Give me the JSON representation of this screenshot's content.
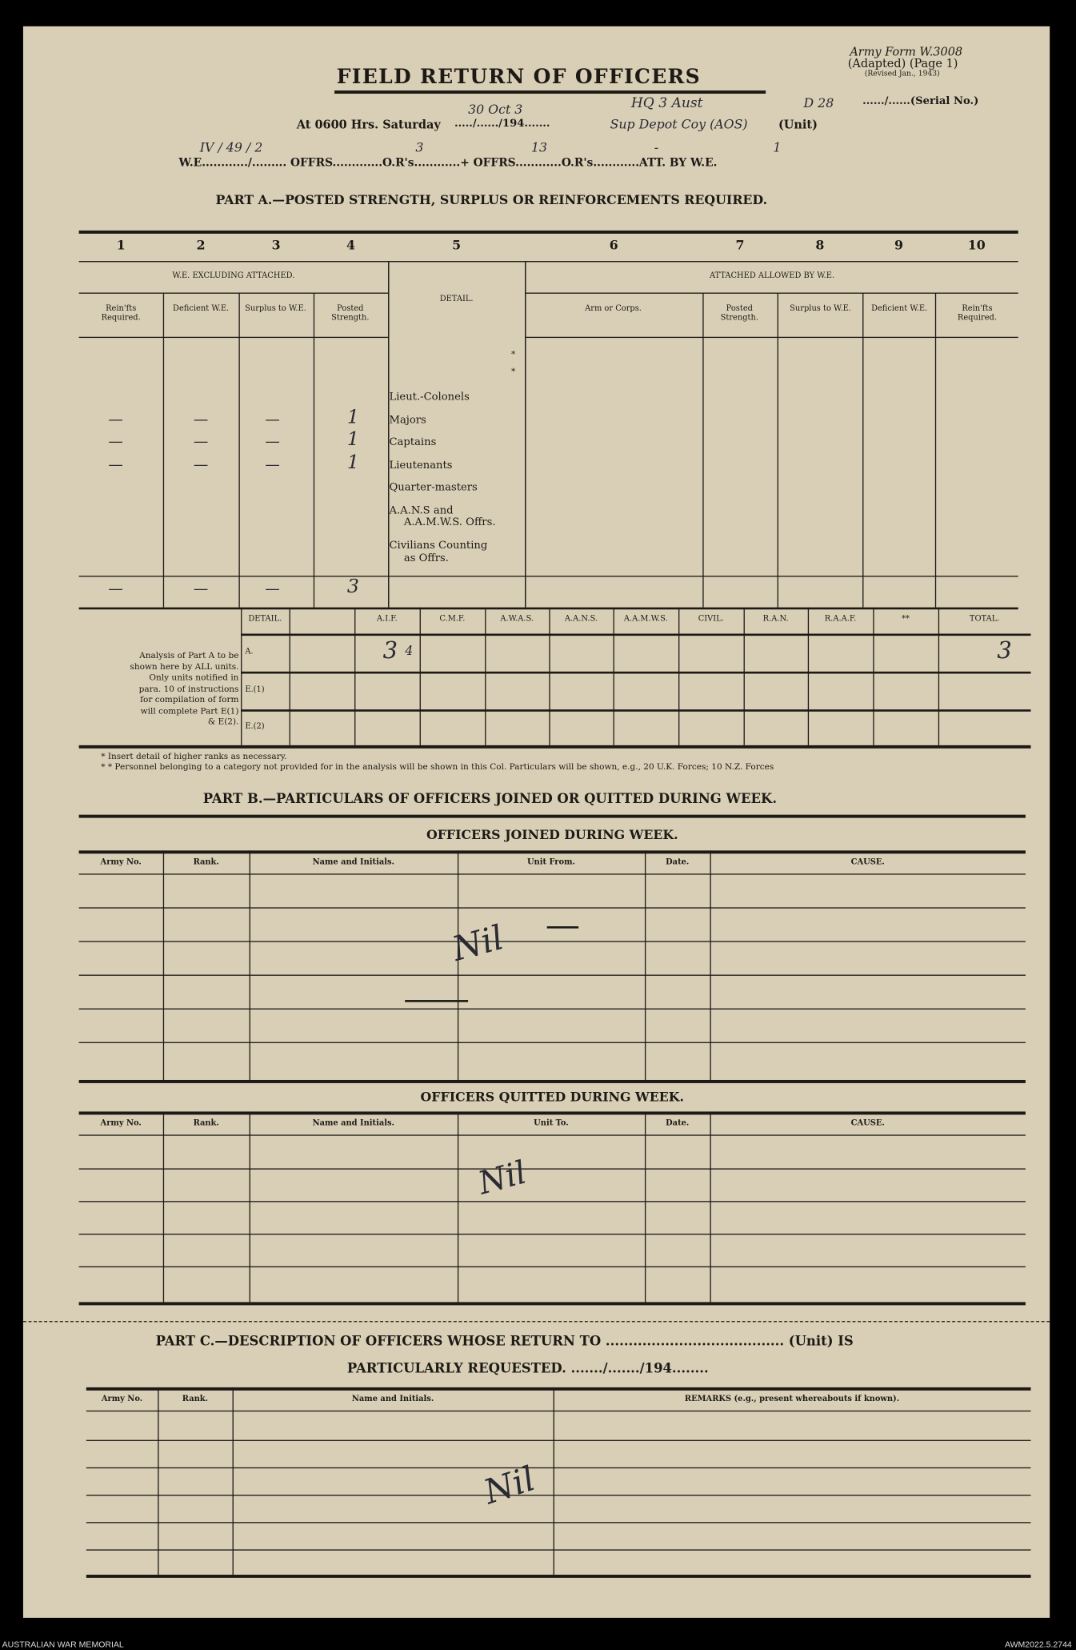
{
  "form": {
    "form_no": "Army Form W.3008",
    "adapted": "(Adapted) (Page 1)",
    "revised": "(Revised Jan., 1943)",
    "title": "FIELD RETURN OF OFFICERS",
    "serial_label": "....../......(Serial No.)",
    "serial_hw": "D 28",
    "unit_hw_1": "HQ 3 Aust",
    "unit_hw_2": "Sup Depot Coy (AOS)",
    "at_label": "At 0600 Hrs. Saturday",
    "date_label": "...../....../194.......",
    "date_hw": "30 Oct 3",
    "unit_label": "(Unit)",
    "we_line": "W.E............/.........  OFFRS.............O.R's............+ OFFRS............O.R's............ATT. BY W.E.",
    "we_hw": "IV / 49 / 2",
    "offrs_hw": "3",
    "ors_hw": "13",
    "att_offrs_hw": "-",
    "att_ors_hw": "1"
  },
  "part_a": {
    "title": "PART A.—POSTED STRENGTH, SURPLUS OR REINFORCEMENTS REQUIRED.",
    "col_numbers": [
      "1",
      "2",
      "3",
      "4",
      "5",
      "6",
      "7",
      "8",
      "9",
      "10"
    ],
    "group_left": "W.E. EXCLUDING ATTACHED.",
    "group_right": "ATTACHED ALLOWED BY W.E.",
    "detail": "DETAIL.",
    "sub": [
      "Rein'fts Required.",
      "Deficient W.E.",
      "Surplus to W.E.",
      "Posted Strength.",
      "Arm or Corps.",
      "Posted Strength.",
      "Surplus to W.E.",
      "Deficient W.E.",
      "Rein'fts Required."
    ],
    "ranks": [
      "*",
      "*",
      "Lieut.-Colonels",
      "Majors",
      "Captains",
      "Lieutenants",
      "Quarter-masters",
      "A.A.N.S and",
      "A.A.M.W.S. Offrs.",
      "Civilians Counting",
      "as Offrs."
    ],
    "entries": {
      "majors": [
        "—",
        "—",
        "—",
        "1"
      ],
      "captains": [
        "—",
        "—",
        "—",
        "1"
      ],
      "lieutenants": [
        "—",
        "—",
        "—",
        "1"
      ],
      "total": [
        "—",
        "—",
        "—",
        "3"
      ]
    }
  },
  "analysis": {
    "note": [
      "Analysis of Part A to be",
      "shown here by ALL units.",
      "Only units notified in",
      "para. 10 of instructions",
      "for compilation of form",
      "will complete Part E(1)",
      "& E(2)."
    ],
    "headers": [
      "DETAIL.",
      "",
      "A.I.F.",
      "C.M.F.",
      "A.W.A.S.",
      "A.A.N.S.",
      "A.A.M.W.S.",
      "CIVIL.",
      "R.A.N.",
      "R.A.A.F.",
      "**",
      "TOTAL."
    ],
    "rows": [
      "A.",
      "E.(1)",
      "E.(2)"
    ],
    "a_aif_hw": "3",
    "a_total_hw": "3",
    "aif_mark_hw": "4",
    "footnote_1": "* Insert detail of higher ranks as necessary.",
    "footnote_2": "* * Personnel belonging to a category not provided for in the analysis will be shown in this Col.  Particulars will be shown, e.g., 20 U.K. Forces; 10 N.Z. Forces"
  },
  "part_b": {
    "title": "PART B.—PARTICULARS OF OFFICERS JOINED OR QUITTED DURING WEEK.",
    "joined_title": "OFFICERS JOINED DURING WEEK.",
    "joined_headers": [
      "Army No.",
      "Rank.",
      "Name and Initials.",
      "Unit From.",
      "Date.",
      "CAUSE."
    ],
    "joined_hw": "Nil",
    "quitted_title": "OFFICERS QUITTED DURING WEEK.",
    "quitted_headers": [
      "Army No.",
      "Rank.",
      "Name and Initials.",
      "Unit To.",
      "Date.",
      "CAUSE."
    ],
    "quitted_hw": "Nil"
  },
  "part_c": {
    "title": "PART C.—DESCRIPTION OF OFFICERS WHOSE RETURN TO ....................................... (Unit) IS",
    "title_2": "PARTICULARLY REQUESTED.  ......./......./194........",
    "headers": [
      "Army No.",
      "Rank.",
      "Name and Initials.",
      "REMARKS (e.g., present whereabouts if known)."
    ],
    "hw": "Nil"
  },
  "footer": {
    "left": "AUSTRALIAN WAR MEMORIAL",
    "right": "AWM2022.5.2744"
  }
}
